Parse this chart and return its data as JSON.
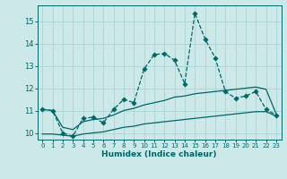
{
  "title": "",
  "xlabel": "Humidex (Indice chaleur)",
  "bg_color": "#cce8e8",
  "grid_color": "#aad4d4",
  "line_color": "#006666",
  "xlim": [
    -0.5,
    23.5
  ],
  "ylim": [
    9.7,
    15.7
  ],
  "xticks": [
    0,
    1,
    2,
    3,
    4,
    5,
    6,
    7,
    8,
    9,
    10,
    11,
    12,
    13,
    14,
    15,
    16,
    17,
    18,
    19,
    20,
    21,
    22,
    23
  ],
  "yticks": [
    10,
    11,
    12,
    13,
    14,
    15
  ],
  "series1_x": [
    0,
    1,
    2,
    3,
    4,
    5,
    6,
    7,
    8,
    9,
    10,
    11,
    12,
    13,
    14,
    15,
    16,
    17,
    18,
    19,
    20,
    21,
    22,
    23
  ],
  "series1_y": [
    11.05,
    11.0,
    10.0,
    9.85,
    10.65,
    10.7,
    10.45,
    11.05,
    11.5,
    11.35,
    12.85,
    13.5,
    13.55,
    13.25,
    12.2,
    15.35,
    14.2,
    13.35,
    11.85,
    11.55,
    11.65,
    11.85,
    11.05,
    10.8
  ],
  "series2_x": [
    0,
    1,
    2,
    3,
    4,
    5,
    6,
    7,
    8,
    9,
    10,
    11,
    12,
    13,
    14,
    15,
    16,
    17,
    18,
    19,
    20,
    21,
    22,
    23
  ],
  "series2_y": [
    11.05,
    11.0,
    10.25,
    10.15,
    10.5,
    10.6,
    10.65,
    10.8,
    11.0,
    11.1,
    11.25,
    11.35,
    11.45,
    11.6,
    11.65,
    11.75,
    11.8,
    11.85,
    11.9,
    11.95,
    12.0,
    12.05,
    11.95,
    10.85
  ],
  "series3_x": [
    0,
    1,
    2,
    3,
    4,
    5,
    6,
    7,
    8,
    9,
    10,
    11,
    12,
    13,
    14,
    15,
    16,
    17,
    18,
    19,
    20,
    21,
    22,
    23
  ],
  "series3_y": [
    9.95,
    9.95,
    9.9,
    9.85,
    9.95,
    10.0,
    10.05,
    10.15,
    10.25,
    10.3,
    10.4,
    10.45,
    10.5,
    10.55,
    10.6,
    10.65,
    10.7,
    10.75,
    10.8,
    10.85,
    10.9,
    10.95,
    10.95,
    10.75
  ]
}
